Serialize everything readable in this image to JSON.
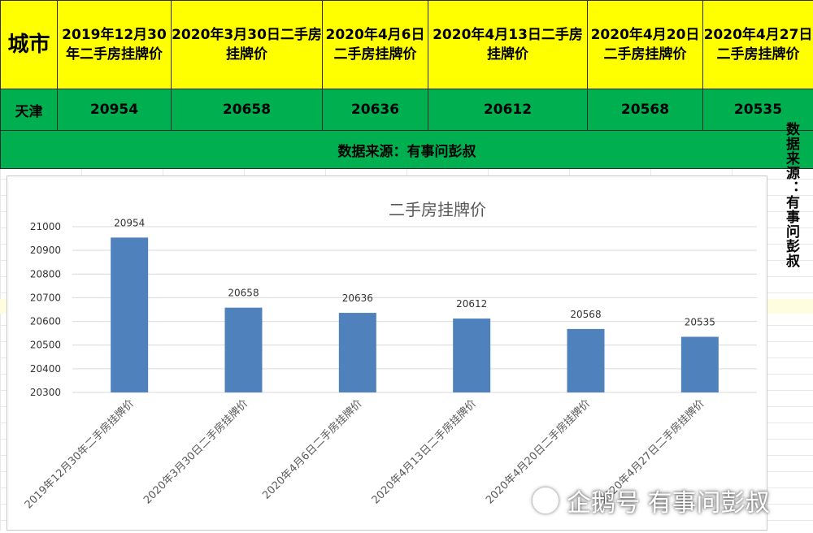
{
  "table": {
    "city_header": "城市",
    "date_headers": [
      "2019年12月30年二手房挂牌价",
      "2020年3月30日二手房挂牌价",
      "2020年4月6日二手房挂牌价",
      "2020年4月13日二手房挂牌价",
      "2020年4月20日二手房挂牌价",
      "2020年4月27日二手房挂牌价"
    ],
    "city": "天津",
    "values": [
      "20954",
      "20658",
      "20636",
      "20612",
      "20568",
      "20535"
    ],
    "source": "数据来源：有事问彭叔"
  },
  "side_note": "数据来源：有事问彭叔",
  "watermark": "企鹅号 有事问彭叔",
  "colors": {
    "header_bg": "#ffff00",
    "row_bg": "#00b050",
    "bar": "#4f81bd"
  },
  "chart_data": {
    "type": "bar",
    "title": "二手房挂牌价",
    "categories": [
      "2019年12月30年二手房挂牌价",
      "2020年3月30日二手房挂牌价",
      "2020年4月6日二手房挂牌价",
      "2020年4月13日二手房挂牌价",
      "2020年4月20日二手房挂牌价",
      "2020年4月27日二手房挂牌价"
    ],
    "values": [
      20954,
      20658,
      20636,
      20612,
      20568,
      20535
    ],
    "ylim": [
      20300,
      21000
    ],
    "yticks": [
      20300,
      20400,
      20500,
      20600,
      20700,
      20800,
      20900,
      21000
    ],
    "grid": true,
    "data_labels": true,
    "xlabel": "",
    "ylabel": ""
  }
}
